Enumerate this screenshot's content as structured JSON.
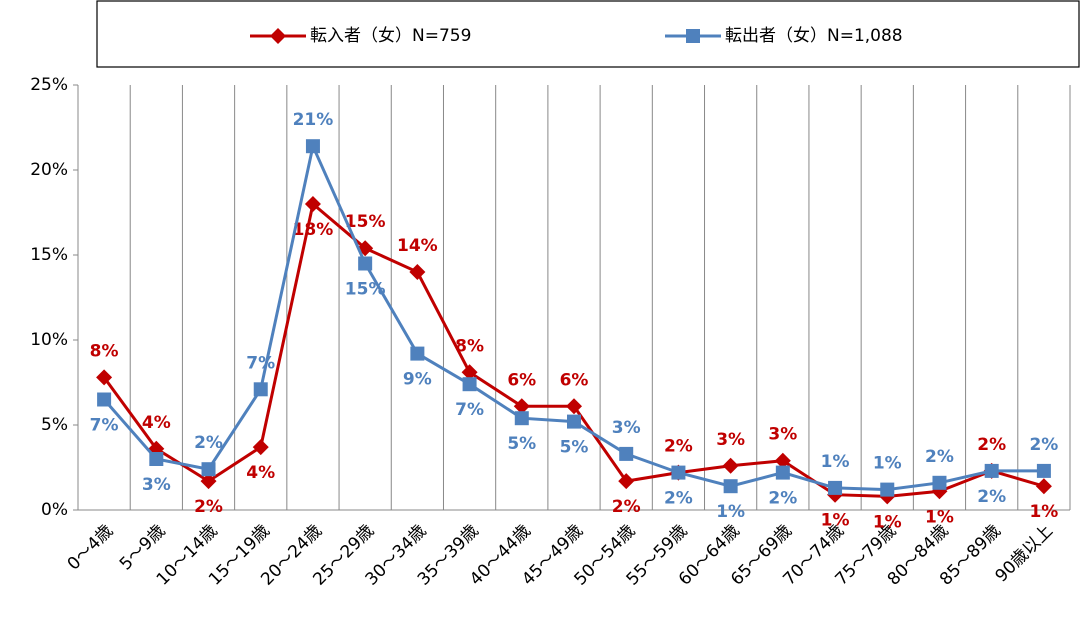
{
  "chart_data": {
    "type": "line",
    "categories": [
      "0～4歳",
      "5～9歳",
      "10～14歳",
      "15～19歳",
      "20～24歳",
      "25～29歳",
      "30～34歳",
      "35～39歳",
      "40～44歳",
      "45～49歳",
      "50～54歳",
      "55～59歳",
      "60～64歳",
      "65～69歳",
      "70～74歳",
      "75～79歳",
      "80～84歳",
      "85～89歳",
      "90歳以上"
    ],
    "series": [
      {
        "name": "転入者（女）N=759",
        "color": "#c00000",
        "marker": "diamond",
        "values": [
          7.8,
          3.6,
          1.7,
          3.7,
          18.0,
          15.4,
          14.0,
          8.1,
          6.1,
          6.1,
          1.7,
          2.2,
          2.6,
          2.9,
          0.9,
          0.8,
          1.1,
          2.3,
          1.4
        ],
        "value_labels": [
          "8%",
          "4%",
          "2%",
          "4%",
          "18%",
          "15%",
          "14%",
          "8%",
          "6%",
          "6%",
          "2%",
          "2%",
          "3%",
          "3%",
          "1%",
          "1%",
          "1%",
          "2%",
          "1%"
        ]
      },
      {
        "name": "転出者（女）N=1,088",
        "color": "#4f81bd",
        "marker": "square",
        "values": [
          6.5,
          3.0,
          2.4,
          7.1,
          21.4,
          14.5,
          9.2,
          7.4,
          5.4,
          5.2,
          3.3,
          2.2,
          1.4,
          2.2,
          1.3,
          1.2,
          1.6,
          2.3,
          2.3
        ],
        "value_labels": [
          "7%",
          "3%",
          "2%",
          "7%",
          "21%",
          "15%",
          "9%",
          "7%",
          "5%",
          "5%",
          "3%",
          "2%",
          "1%",
          "2%",
          "1%",
          "1%",
          "2%",
          "2%",
          "2%"
        ]
      }
    ],
    "ylim": [
      0,
      25
    ],
    "yticks": [
      {
        "value": 0,
        "label": "0%"
      },
      {
        "value": 5,
        "label": "5%"
      },
      {
        "value": 10,
        "label": "10%"
      },
      {
        "value": 15,
        "label": "15%"
      },
      {
        "value": 20,
        "label": "20%"
      },
      {
        "value": 25,
        "label": "25%"
      }
    ],
    "legend": "top"
  }
}
